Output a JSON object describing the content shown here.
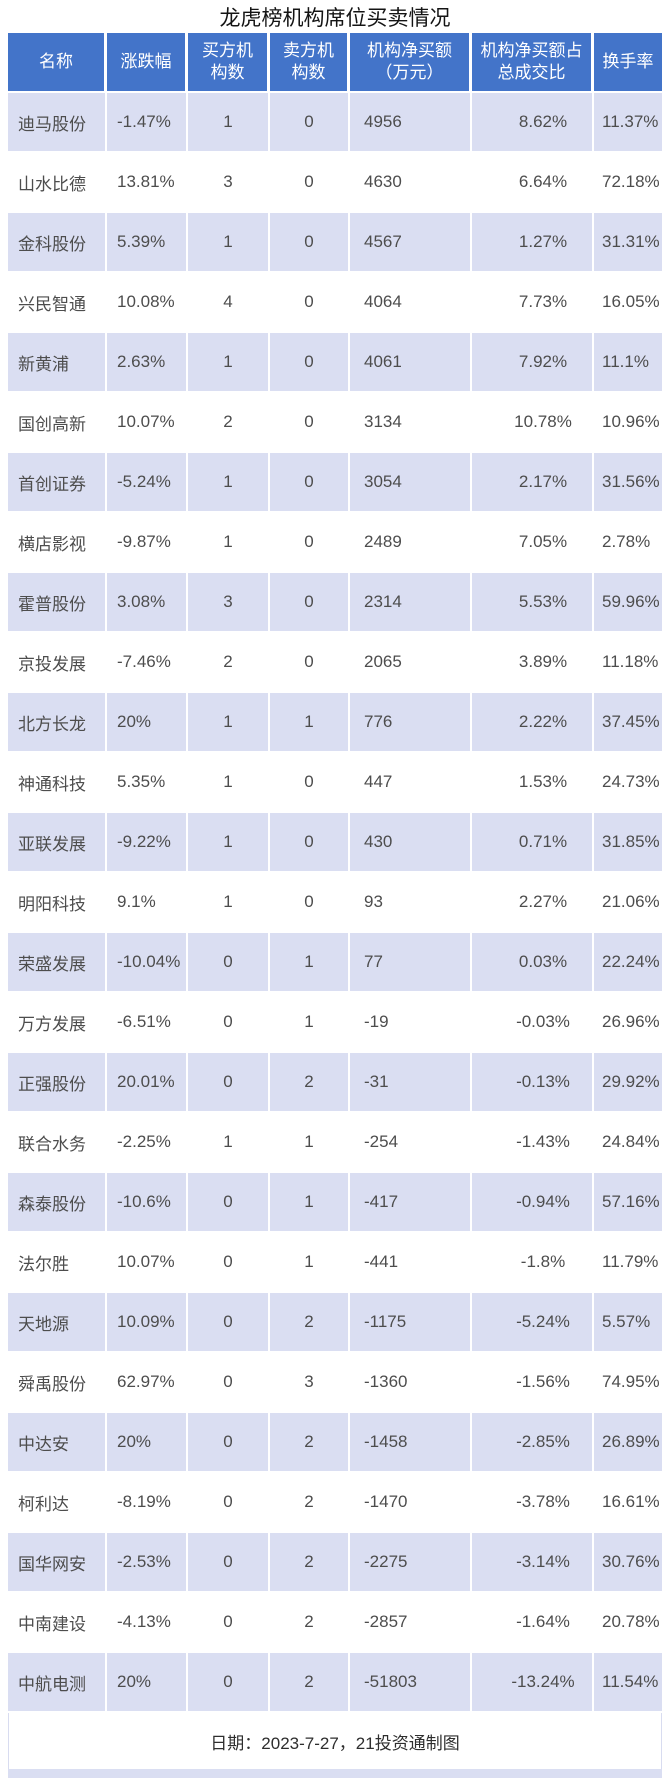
{
  "title": "龙虎榜机构席位买卖情况",
  "header": {
    "labels": [
      "名称",
      "涨跌幅",
      "买方机\n构数",
      "卖方机\n构数",
      "机构净买额\n（万元）",
      "机构净买额占\n总成交比",
      "换手率"
    ]
  },
  "chart_data": {
    "type": "table",
    "title": "龙虎榜机构席位买卖情况",
    "columns": [
      "名称",
      "涨跌幅",
      "买方机构数",
      "卖方机构数",
      "机构净买额（万元）",
      "机构净买额占总成交比",
      "换手率"
    ],
    "rows": [
      [
        "迪马股份",
        "-1.47%",
        "1",
        "0",
        "4956",
        "8.62%",
        "11.37%"
      ],
      [
        "山水比德",
        "13.81%",
        "3",
        "0",
        "4630",
        "6.64%",
        "72.18%"
      ],
      [
        "金科股份",
        "5.39%",
        "1",
        "0",
        "4567",
        "1.27%",
        "31.31%"
      ],
      [
        "兴民智通",
        "10.08%",
        "4",
        "0",
        "4064",
        "7.73%",
        "16.05%"
      ],
      [
        "新黄浦",
        "2.63%",
        "1",
        "0",
        "4061",
        "7.92%",
        "11.1%"
      ],
      [
        "国创高新",
        "10.07%",
        "2",
        "0",
        "3134",
        "10.78%",
        "10.96%"
      ],
      [
        "首创证券",
        "-5.24%",
        "1",
        "0",
        "3054",
        "2.17%",
        "31.56%"
      ],
      [
        "横店影视",
        "-9.87%",
        "1",
        "0",
        "2489",
        "7.05%",
        "2.78%"
      ],
      [
        "霍普股份",
        "3.08%",
        "3",
        "0",
        "2314",
        "5.53%",
        "59.96%"
      ],
      [
        "京投发展",
        "-7.46%",
        "2",
        "0",
        "2065",
        "3.89%",
        "11.18%"
      ],
      [
        "北方长龙",
        "20%",
        "1",
        "1",
        "776",
        "2.22%",
        "37.45%"
      ],
      [
        "神通科技",
        "5.35%",
        "1",
        "0",
        "447",
        "1.53%",
        "24.73%"
      ],
      [
        "亚联发展",
        "-9.22%",
        "1",
        "0",
        "430",
        "0.71%",
        "31.85%"
      ],
      [
        "明阳科技",
        "9.1%",
        "1",
        "0",
        "93",
        "2.27%",
        "21.06%"
      ],
      [
        "荣盛发展",
        "-10.04%",
        "0",
        "1",
        "77",
        "0.03%",
        "22.24%"
      ],
      [
        "万方发展",
        "-6.51%",
        "0",
        "1",
        "-19",
        "-0.03%",
        "26.96%"
      ],
      [
        "正强股份",
        "20.01%",
        "0",
        "2",
        "-31",
        "-0.13%",
        "29.92%"
      ],
      [
        "联合水务",
        "-2.25%",
        "1",
        "1",
        "-254",
        "-1.43%",
        "24.84%"
      ],
      [
        "森泰股份",
        "-10.6%",
        "0",
        "1",
        "-417",
        "-0.94%",
        "57.16%"
      ],
      [
        "法尔胜",
        "10.07%",
        "0",
        "1",
        "-441",
        "-1.8%",
        "11.79%"
      ],
      [
        "天地源",
        "10.09%",
        "0",
        "2",
        "-1175",
        "-5.24%",
        "5.57%"
      ],
      [
        "舜禹股份",
        "62.97%",
        "0",
        "3",
        "-1360",
        "-1.56%",
        "74.95%"
      ],
      [
        "中达安",
        "20%",
        "0",
        "2",
        "-1458",
        "-2.85%",
        "26.89%"
      ],
      [
        "柯利达",
        "-8.19%",
        "0",
        "2",
        "-1470",
        "-3.78%",
        "16.61%"
      ],
      [
        "国华网安",
        "-2.53%",
        "0",
        "2",
        "-2275",
        "-3.14%",
        "30.76%"
      ],
      [
        "中南建设",
        "-4.13%",
        "0",
        "2",
        "-2857",
        "-1.64%",
        "20.78%"
      ],
      [
        "中航电测",
        "20%",
        "0",
        "2",
        "-51803",
        "-13.24%",
        "11.54%"
      ]
    ],
    "footnote": "日期：2023-7-27，21投资通制图"
  },
  "footer": {
    "note": "日期：2023-7-27，21投资通制图"
  },
  "colors": {
    "header_bg": "#4374c9",
    "header_text": "#ffffff",
    "row_alt_bg": "#dadef2",
    "row_bg": "#ffffff",
    "body_text": "#4d4d4d",
    "title_text": "#141414"
  }
}
